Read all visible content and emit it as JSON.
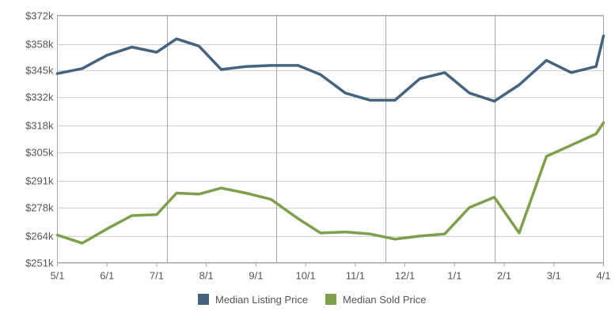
{
  "chart_data": {
    "type": "line",
    "title": "",
    "xlabel": "",
    "ylabel": "",
    "ylim": [
      251,
      372
    ],
    "y_ticks": [
      "$372k",
      "$358k",
      "$345k",
      "$332k",
      "$318k",
      "$305k",
      "$291k",
      "$278k",
      "$264k",
      "$251k"
    ],
    "y_tick_values": [
      372,
      358,
      345,
      332,
      318,
      305,
      291,
      278,
      264,
      251
    ],
    "x_ticks": [
      "5/1",
      "6/1",
      "7/1",
      "8/1",
      "9/1",
      "10/1",
      "11/1",
      "12/1",
      "1/1",
      "2/1",
      "3/1",
      "4/1"
    ],
    "x_range": [
      0,
      11
    ],
    "vertical_grid_at": [
      2.2,
      4.4,
      6.6,
      8.8
    ],
    "grid": true,
    "legend_position": "bottom-center",
    "series": [
      {
        "name": "Median Listing Price",
        "color": "#44637e",
        "x": [
          0,
          0.5,
          1,
          1.5,
          2,
          2.4,
          2.85,
          3.3,
          3.8,
          4.3,
          4.85,
          5.3,
          5.8,
          6.3,
          6.8,
          7.3,
          7.8,
          8.3,
          8.8,
          9.3,
          9.85,
          10.35,
          10.85,
          11
        ],
        "values": [
          343.5,
          346,
          352.5,
          356.5,
          354,
          360.5,
          357,
          345.5,
          347,
          347.5,
          347.5,
          343,
          334,
          330.5,
          330.5,
          341,
          344,
          334,
          330,
          338,
          350,
          344,
          347,
          362
        ]
      },
      {
        "name": "Median Sold Price",
        "color": "#7ea04d",
        "x": [
          0,
          0.5,
          1,
          1.5,
          2,
          2.4,
          2.85,
          3.3,
          3.8,
          4.3,
          4.85,
          5.3,
          5.8,
          6.3,
          6.8,
          7.3,
          7.8,
          8.3,
          8.8,
          9.3,
          9.85,
          10.35,
          10.85,
          11
        ],
        "values": [
          264.5,
          260.5,
          267.5,
          274,
          274.5,
          285,
          284.5,
          287.5,
          285,
          282,
          272.5,
          265.5,
          266,
          265,
          262.5,
          264,
          265,
          278,
          283,
          265.5,
          303,
          308.5,
          314,
          319.5
        ]
      }
    ]
  }
}
